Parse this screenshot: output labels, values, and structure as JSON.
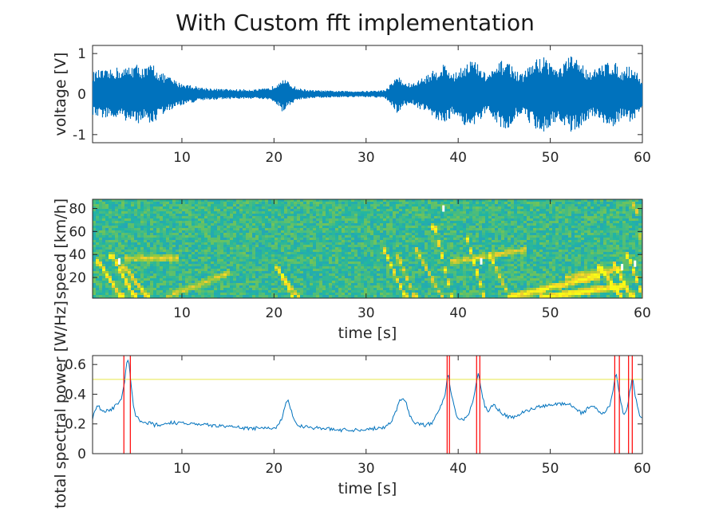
{
  "figure": {
    "title": "With Custom fft implementation"
  },
  "chart_data": [
    {
      "type": "line",
      "title": "",
      "xlabel": "",
      "ylabel": "voltage [V]",
      "xlim": [
        0.3,
        60
      ],
      "ylim": [
        -1.2,
        1.2
      ],
      "xticks": [
        10,
        20,
        30,
        40,
        50,
        60
      ],
      "yticks": [
        -1,
        0,
        1
      ],
      "grid": false,
      "color": "#0072BD",
      "series": [
        {
          "amplitude_envelope": {
            "t": [
              0.3,
              1.0,
              2.0,
              3.0,
              3.5,
              4.2,
              5.0,
              6.0,
              6.8,
              7.5,
              8.5,
              9.5,
              10.5,
              12,
              14,
              16,
              18,
              19.5,
              20.3,
              20.8,
              21.5,
              22.5,
              24,
              27,
              30,
              32,
              32.8,
              33.3,
              34,
              35,
              36,
              37,
              37.8,
              38.4,
              39,
              39.6,
              40.3,
              41,
              41.6,
              42.3,
              43,
              43.8,
              44.5,
              45.2,
              46,
              46.8,
              47.6,
              48.5,
              49.3,
              50,
              50.8,
              51.5,
              52.2,
              53,
              53.8,
              54.6,
              55.4,
              56.2,
              57,
              57.8,
              58.5,
              59.2,
              60
            ],
            "amp": [
              0.55,
              0.6,
              0.58,
              0.68,
              0.6,
              0.72,
              0.75,
              0.65,
              0.78,
              0.55,
              0.45,
              0.3,
              0.25,
              0.17,
              0.13,
              0.12,
              0.12,
              0.15,
              0.28,
              0.45,
              0.3,
              0.15,
              0.1,
              0.08,
              0.08,
              0.1,
              0.3,
              0.5,
              0.3,
              0.26,
              0.4,
              0.55,
              0.65,
              0.78,
              0.62,
              0.5,
              0.72,
              0.82,
              0.88,
              0.68,
              0.5,
              0.6,
              0.8,
              0.9,
              0.65,
              0.48,
              0.7,
              0.88,
              0.95,
              0.82,
              0.6,
              0.82,
              0.95,
              0.88,
              0.65,
              0.6,
              0.68,
              0.85,
              0.78,
              0.6,
              0.72,
              0.62,
              0.3
            ]
          }
        }
      ]
    },
    {
      "type": "heatmap",
      "title": "",
      "xlabel": "time [s]",
      "ylabel": "speed [km/h]",
      "xlim": [
        0.3,
        60
      ],
      "ylim": [
        2,
        88
      ],
      "xticks": [
        10,
        20,
        30,
        40,
        50,
        60
      ],
      "yticks": [
        20,
        40,
        60,
        80
      ],
      "colormap": [
        "#3e26a8",
        "#2e86de",
        "#21b5a3",
        "#8ec93f",
        "#f1cc2e",
        "#f9fb15"
      ],
      "base_level": 0.44,
      "white_markers": [
        {
          "t": 3.2,
          "speed": 34
        },
        {
          "t": 38.4,
          "speed": 80
        },
        {
          "t": 42.5,
          "speed": 34
        },
        {
          "t": 57.8,
          "speed": 29
        },
        {
          "t": 59.2,
          "speed": 32
        }
      ],
      "tracks": [
        {
          "t0": 1.0,
          "t1": 3.3,
          "s0": 35,
          "s1": 5,
          "strength": 0.75
        },
        {
          "t0": 2.5,
          "t1": 4.8,
          "s0": 40,
          "s1": 5,
          "strength": 0.85
        },
        {
          "t0": 3.8,
          "t1": 6.2,
          "s0": 30,
          "s1": 5,
          "strength": 0.6
        },
        {
          "t0": 4.0,
          "t1": 9.5,
          "s0": 38,
          "s1": 38,
          "strength": 0.45
        },
        {
          "t0": 8.5,
          "t1": 15.0,
          "s0": 5,
          "s1": 25,
          "strength": 0.35
        },
        {
          "t0": 20.4,
          "t1": 22.0,
          "s0": 30,
          "s1": 5,
          "strength": 0.6
        },
        {
          "t0": 21.0,
          "t1": 22.6,
          "s0": 22,
          "s1": 5,
          "strength": 0.5
        },
        {
          "t0": 32.0,
          "t1": 34.2,
          "s0": 45,
          "s1": 5,
          "strength": 0.6
        },
        {
          "t0": 33.6,
          "t1": 35.2,
          "s0": 38,
          "s1": 5,
          "strength": 0.55
        },
        {
          "t0": 35.5,
          "t1": 38.2,
          "s0": 45,
          "s1": 5,
          "strength": 0.45
        },
        {
          "t0": 37.5,
          "t1": 39.3,
          "s0": 65,
          "s1": 5,
          "strength": 0.8
        },
        {
          "t0": 39.5,
          "t1": 47.0,
          "s0": 35,
          "s1": 45,
          "strength": 0.4
        },
        {
          "t0": 41.0,
          "t1": 42.8,
          "s0": 55,
          "s1": 5,
          "strength": 0.85
        },
        {
          "t0": 43.5,
          "t1": 45.5,
          "s0": 40,
          "s1": 5,
          "strength": 0.55
        },
        {
          "t0": 46.0,
          "t1": 55.0,
          "s0": 5,
          "s1": 22,
          "strength": 0.7
        },
        {
          "t0": 49.0,
          "t1": 58.0,
          "s0": 4,
          "s1": 14,
          "strength": 0.8
        },
        {
          "t0": 52.0,
          "t1": 57.5,
          "s0": 22,
          "s1": 28,
          "strength": 0.4
        },
        {
          "t0": 55.5,
          "t1": 57.6,
          "s0": 30,
          "s1": 5,
          "strength": 0.8
        },
        {
          "t0": 57.0,
          "t1": 58.8,
          "s0": 32,
          "s1": 5,
          "strength": 0.8
        },
        {
          "t0": 58.5,
          "t1": 60.0,
          "s0": 40,
          "s1": 5,
          "strength": 0.8
        },
        {
          "t0": 59.3,
          "t1": 60.0,
          "s0": 85,
          "s1": 40,
          "strength": 0.5
        }
      ]
    },
    {
      "type": "line",
      "title": "",
      "xlabel": "time [s]",
      "ylabel": "total spectral power [W/Hz]",
      "xlim": [
        0.3,
        60
      ],
      "ylim": [
        0,
        0.66
      ],
      "xticks": [
        10,
        20,
        30,
        40,
        50,
        60
      ],
      "yticks": [
        0,
        0.2,
        0.4,
        0.6
      ],
      "ytick_labels": [
        "0",
        "0.2",
        "0.4",
        "0.6"
      ],
      "grid": false,
      "threshold": {
        "value": 0.5,
        "color": "#e8e84a"
      },
      "event_lines": {
        "color": "#ff0000",
        "t": [
          3.7,
          4.4,
          38.8,
          39.05,
          42.0,
          42.35,
          57.0,
          57.5,
          58.5,
          58.9
        ]
      },
      "series": [
        {
          "color": "#0072BD",
          "x": [
            0.3,
            0.5,
            0.8,
            1.0,
            1.3,
            1.6,
            2.0,
            2.4,
            2.8,
            3.2,
            3.5,
            3.7,
            3.9,
            4.1,
            4.3,
            4.5,
            4.7,
            5.0,
            5.5,
            6.0,
            6.5,
            7.0,
            7.5,
            8.0,
            8.5,
            9.0,
            10.0,
            11.0,
            12.0,
            13.0,
            14.0,
            15.0,
            16.0,
            17.0,
            18.0,
            19.0,
            20.0,
            20.5,
            20.9,
            21.2,
            21.5,
            21.8,
            22.2,
            22.8,
            23.5,
            25.0,
            27.0,
            29.0,
            31.0,
            32.0,
            32.8,
            33.2,
            33.6,
            34.0,
            34.4,
            34.8,
            35.5,
            36.5,
            37.2,
            37.8,
            38.2,
            38.6,
            38.9,
            39.2,
            39.6,
            40.0,
            40.5,
            41.0,
            41.5,
            41.9,
            42.2,
            42.5,
            42.9,
            43.3,
            43.8,
            44.3,
            44.8,
            45.3,
            45.8,
            46.5,
            47.5,
            48.5,
            49.5,
            50.5,
            51.5,
            52.5,
            53.0,
            53.5,
            54.0,
            54.5,
            55.0,
            55.5,
            56.0,
            56.5,
            56.8,
            57.1,
            57.4,
            57.7,
            58.0,
            58.3,
            58.6,
            58.9,
            59.2,
            59.5,
            59.8,
            60.0
          ],
          "y": [
            0.24,
            0.28,
            0.32,
            0.31,
            0.3,
            0.28,
            0.29,
            0.3,
            0.32,
            0.35,
            0.38,
            0.45,
            0.55,
            0.65,
            0.58,
            0.45,
            0.33,
            0.26,
            0.22,
            0.2,
            0.21,
            0.19,
            0.2,
            0.19,
            0.2,
            0.21,
            0.2,
            0.21,
            0.2,
            0.19,
            0.19,
            0.18,
            0.18,
            0.17,
            0.17,
            0.17,
            0.17,
            0.19,
            0.25,
            0.32,
            0.37,
            0.3,
            0.22,
            0.19,
            0.18,
            0.17,
            0.16,
            0.16,
            0.17,
            0.18,
            0.22,
            0.28,
            0.35,
            0.38,
            0.33,
            0.25,
            0.2,
            0.19,
            0.21,
            0.27,
            0.33,
            0.4,
            0.55,
            0.42,
            0.3,
            0.24,
            0.22,
            0.25,
            0.33,
            0.45,
            0.55,
            0.42,
            0.32,
            0.28,
            0.33,
            0.3,
            0.27,
            0.25,
            0.24,
            0.26,
            0.29,
            0.31,
            0.32,
            0.33,
            0.34,
            0.32,
            0.29,
            0.27,
            0.3,
            0.33,
            0.3,
            0.27,
            0.28,
            0.33,
            0.42,
            0.55,
            0.45,
            0.33,
            0.26,
            0.3,
            0.4,
            0.52,
            0.4,
            0.3,
            0.25,
            0.24
          ]
        }
      ]
    }
  ]
}
